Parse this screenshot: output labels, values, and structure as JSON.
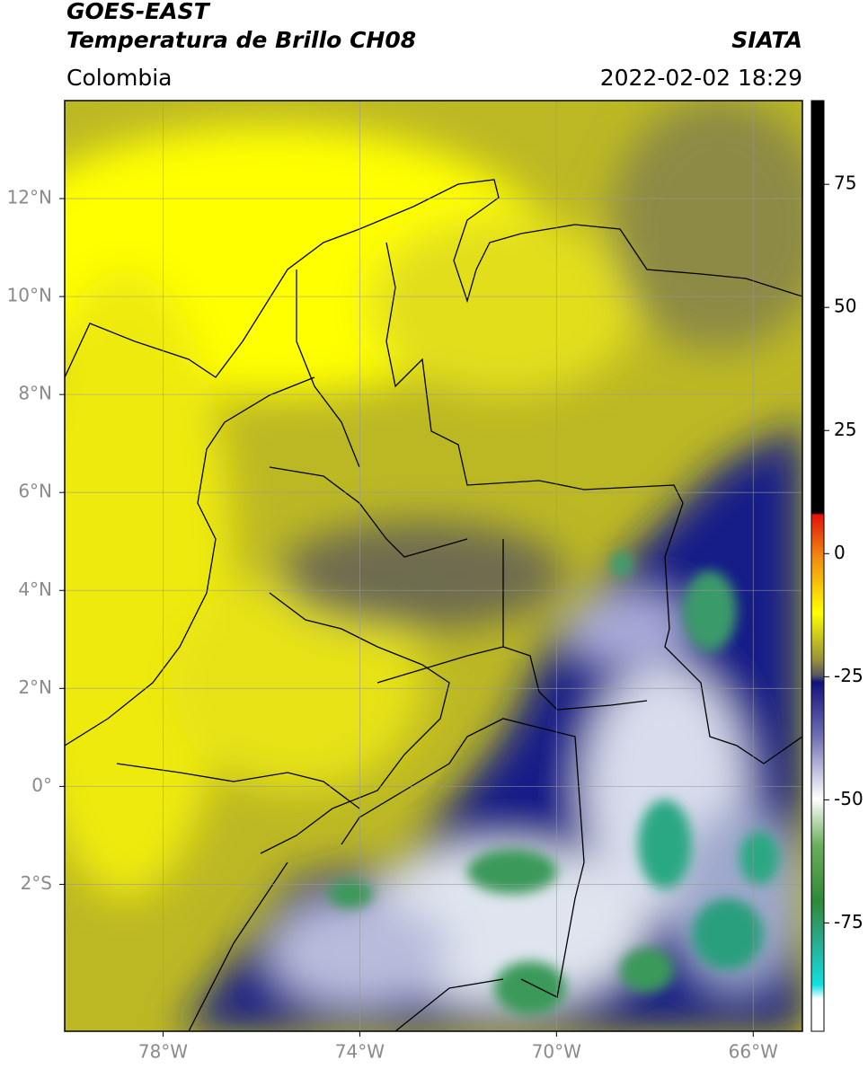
{
  "header": {
    "title": "GOES-EAST",
    "subtitle": "Temperatura de Brillo CH08",
    "source": "SIATA",
    "region": "Colombia",
    "timestamp": "2022-02-02 18:29"
  },
  "map": {
    "xlim": [
      -80,
      -65
    ],
    "ylim": [
      -5,
      14
    ],
    "grid": true,
    "xticks": [
      {
        "value": -78,
        "label": "78°W"
      },
      {
        "value": -74,
        "label": "74°W"
      },
      {
        "value": -70,
        "label": "70°W"
      },
      {
        "value": -66,
        "label": "66°W"
      }
    ],
    "yticks": [
      {
        "value": 12,
        "label": "12°N"
      },
      {
        "value": 10,
        "label": "10°N"
      },
      {
        "value": 8,
        "label": "8°N"
      },
      {
        "value": 6,
        "label": "6°N"
      },
      {
        "value": 4,
        "label": "4°N"
      },
      {
        "value": 2,
        "label": "2°N"
      },
      {
        "value": 0,
        "label": "0°"
      },
      {
        "value": -2,
        "label": "2°S"
      }
    ]
  },
  "colorbar": {
    "lim": [
      -97,
      92
    ],
    "ticks": [
      75,
      50,
      25,
      0,
      -25,
      -50,
      -75
    ]
  }
}
